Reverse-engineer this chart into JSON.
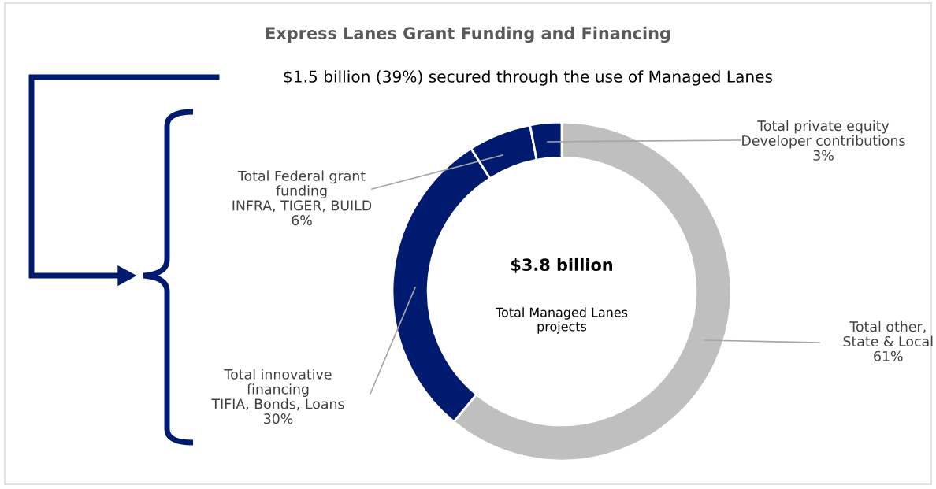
{
  "chart_data": {
    "type": "donut",
    "title": "Express Lanes Grant Funding and Financing",
    "subtitle": "$1.5 billion (39%) secured through the use of Managed Lanes",
    "categories": [
      "Total other,\nState & Local",
      "Total innovative\nfinancing\nTIFIA, Bonds, Loans",
      "Total Federal grant\nfunding\nINFRA, TIGER, BUILD",
      "Total private equity\nDeveloper contributions"
    ],
    "values": [
      61,
      30,
      6,
      3
    ],
    "value_labels": [
      "61%",
      "30%",
      "6%",
      "3%"
    ],
    "colors": [
      "#bfbfbf",
      "#001a70",
      "#001a70",
      "#001a70"
    ],
    "annotations": [
      "$3.8 billion",
      "Total Managed Lanes\nprojects"
    ]
  }
}
